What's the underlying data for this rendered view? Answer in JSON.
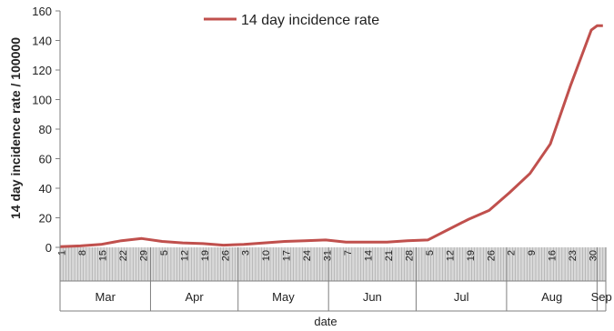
{
  "chart_data": {
    "type": "line",
    "title": "",
    "xlabel": "date",
    "ylabel": "14 day incidence rate / 100000",
    "ylim": [
      0,
      160
    ],
    "yticks": [
      0,
      20,
      40,
      60,
      80,
      100,
      120,
      140,
      160
    ],
    "legend": {
      "position": "top-center",
      "entries": [
        "14 day incidence rate"
      ]
    },
    "colors": {
      "series": "#c0504d",
      "axis": "#7f7f7f",
      "tickband": "#d9d9d9"
    },
    "x_ticks": [
      "1",
      "8",
      "15",
      "22",
      "29",
      "5",
      "12",
      "19",
      "26",
      "3",
      "10",
      "17",
      "24",
      "31",
      "7",
      "14",
      "21",
      "28",
      "5",
      "12",
      "19",
      "26",
      "2",
      "9",
      "16",
      "23",
      "30"
    ],
    "months": [
      "Mar",
      "Apr",
      "May",
      "Jun",
      "Jul",
      "Aug",
      "Sep"
    ],
    "series": [
      {
        "name": "14 day incidence rate",
        "x": [
          "2020-03-01",
          "2020-03-08",
          "2020-03-15",
          "2020-03-22",
          "2020-03-29",
          "2020-04-05",
          "2020-04-12",
          "2020-04-19",
          "2020-04-26",
          "2020-05-03",
          "2020-05-10",
          "2020-05-17",
          "2020-05-24",
          "2020-05-31",
          "2020-06-07",
          "2020-06-14",
          "2020-06-21",
          "2020-06-28",
          "2020-07-05",
          "2020-07-12",
          "2020-07-19",
          "2020-07-26",
          "2020-08-02",
          "2020-08-09",
          "2020-08-16",
          "2020-08-23",
          "2020-08-30",
          "2020-09-01",
          "2020-09-03"
        ],
        "y": [
          0.5,
          1,
          2,
          4.5,
          6,
          4,
          3,
          2.5,
          1.5,
          2,
          3,
          4,
          4.5,
          5,
          3.5,
          3.5,
          3.5,
          4.5,
          5,
          12,
          19,
          25,
          37,
          50,
          70,
          110,
          147,
          150,
          150
        ]
      }
    ]
  }
}
